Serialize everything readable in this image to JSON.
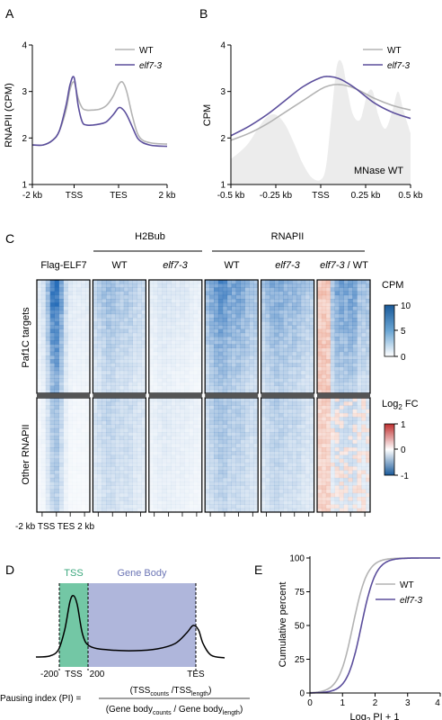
{
  "panels": {
    "A": {
      "label": "A",
      "chart_data": {
        "type": "line",
        "ylabel": "RNAPII (CPM)",
        "xlabel": "",
        "x_tick_labels": [
          "-2 kb",
          "TSS",
          "TES",
          "2 kb"
        ],
        "y_ticks": [
          1,
          2,
          3,
          4
        ],
        "ylim": [
          1,
          4
        ],
        "legend_position": "top-right",
        "series": [
          {
            "name": "WT",
            "color": "#b3b3b3",
            "x": [
              0,
              0.08,
              0.15,
              0.2,
              0.25,
              0.28,
              0.31,
              0.34,
              0.37,
              0.4,
              0.45,
              0.5,
              0.55,
              0.6,
              0.64,
              0.67,
              0.7,
              0.74,
              0.78,
              0.82,
              0.87,
              0.92,
              1.0
            ],
            "y": [
              1.85,
              1.85,
              1.95,
              2.15,
              2.6,
              3.05,
              3.2,
              2.85,
              2.65,
              2.6,
              2.6,
              2.62,
              2.7,
              2.9,
              3.15,
              3.2,
              3.0,
              2.5,
              2.1,
              1.95,
              1.9,
              1.88,
              1.87
            ]
          },
          {
            "name": "elf7-3",
            "color": "#5b4e9c",
            "x": [
              0,
              0.08,
              0.15,
              0.2,
              0.25,
              0.28,
              0.31,
              0.34,
              0.37,
              0.4,
              0.45,
              0.5,
              0.55,
              0.6,
              0.64,
              0.67,
              0.7,
              0.74,
              0.78,
              0.82,
              0.87,
              0.92,
              1.0
            ],
            "y": [
              1.85,
              1.85,
              1.95,
              2.15,
              2.7,
              3.15,
              3.3,
              2.7,
              2.35,
              2.28,
              2.28,
              2.3,
              2.35,
              2.5,
              2.65,
              2.62,
              2.5,
              2.25,
              2.0,
              1.9,
              1.85,
              1.83,
              1.82
            ]
          }
        ]
      }
    },
    "B": {
      "label": "B",
      "chart_data": {
        "type": "line",
        "ylabel": "CPM",
        "xlabel": "",
        "x": [
          -0.5,
          -0.25,
          0,
          0.25,
          0.5
        ],
        "x_tick_labels": [
          "-0.5 kb",
          "-0.25 kb",
          "TSS",
          "0.25 kb",
          "0.5 kb"
        ],
        "y_ticks": [
          1,
          2,
          3,
          4
        ],
        "ylim": [
          1,
          4
        ],
        "xlim": [
          -0.5,
          0.5
        ],
        "legend_position": "top-right",
        "annotation": "MNase WT",
        "series": [
          {
            "name": "WT",
            "color": "#b3b3b3",
            "x": [
              -0.5,
              -0.4,
              -0.3,
              -0.2,
              -0.1,
              0,
              0.05,
              0.1,
              0.15,
              0.2,
              0.3,
              0.4,
              0.5
            ],
            "y": [
              1.95,
              2.1,
              2.3,
              2.55,
              2.8,
              3.05,
              3.13,
              3.15,
              3.12,
              3.05,
              2.85,
              2.7,
              2.6
            ]
          },
          {
            "name": "elf7-3",
            "color": "#5b4e9c",
            "x": [
              -0.5,
              -0.4,
              -0.3,
              -0.2,
              -0.1,
              0,
              0.05,
              0.1,
              0.15,
              0.2,
              0.3,
              0.4,
              0.5
            ],
            "y": [
              2.05,
              2.25,
              2.5,
              2.8,
              3.1,
              3.3,
              3.32,
              3.28,
              3.18,
              3.05,
              2.75,
              2.55,
              2.42
            ]
          },
          {
            "name": "MNase WT",
            "color": "#ececec",
            "fill": true,
            "x": [
              -0.5,
              -0.45,
              -0.4,
              -0.35,
              -0.3,
              -0.25,
              -0.2,
              -0.15,
              -0.1,
              -0.05,
              0,
              0.03,
              0.06,
              0.09,
              0.12,
              0.15,
              0.18,
              0.22,
              0.26,
              0.29,
              0.32,
              0.36,
              0.4,
              0.43,
              0.46,
              0.5
            ],
            "y": [
              1.55,
              1.7,
              1.9,
              2.2,
              2.45,
              2.5,
              2.3,
              1.9,
              1.45,
              1.15,
              1.1,
              1.4,
              2.5,
              3.55,
              3.6,
              3.0,
              2.5,
              2.4,
              2.95,
              3.0,
              2.5,
              2.2,
              2.6,
              3.0,
              2.6,
              2.1
            ]
          }
        ]
      }
    },
    "C": {
      "label": "C",
      "group_labels": [
        "H2Bub",
        "RNAPII"
      ],
      "columns": [
        {
          "label": "Flag-ELF7",
          "italic": false,
          "kind": "blue",
          "row1": 0.85,
          "row2": 0.35,
          "gap": false
        },
        {
          "label": "WT",
          "italic": false,
          "kind": "blue",
          "row1": 0.45,
          "row2": 0.3,
          "gap": true
        },
        {
          "label": "elf7-3",
          "italic": true,
          "kind": "blue",
          "row1": 0.18,
          "row2": 0.14,
          "gap": true
        },
        {
          "label": "WT",
          "italic": false,
          "kind": "blue",
          "row1": 0.75,
          "row2": 0.4,
          "gap": true
        },
        {
          "label": "elf7-3",
          "italic": true,
          "kind": "blue",
          "row1": 0.6,
          "row2": 0.33,
          "gap": true
        },
        {
          "label_main": "elf7-3",
          "label_rest": " / WT",
          "kind": "div",
          "row1": 0.5,
          "row2": 0.2,
          "gap": true
        }
      ],
      "row_labels": [
        "Paf1C targets",
        "Other RNAPII"
      ],
      "x_axis_label": "-2 kb TSS TES 2 kb",
      "colorbar_cpm": {
        "title": "CPM",
        "ticks": [
          "10",
          "5",
          "0"
        ],
        "colors": [
          "#1a5a9a",
          "#ffffff"
        ]
      },
      "colorbar_fc": {
        "title_main": "Log",
        "title_sub": "2",
        "title_rest": " FC",
        "ticks": [
          "1",
          "0",
          "-1"
        ],
        "colors": [
          "#c03030",
          "#ffffff",
          "#1a5a9a"
        ]
      }
    },
    "D": {
      "label": "D",
      "region_tss": "TSS",
      "region_body": "Gene Body",
      "tss_color": "#5bbd95",
      "body_color": "#9ba4d2",
      "tick_labels": [
        "-200",
        "TSS",
        "200",
        "TES"
      ],
      "formula": {
        "lhs": "Pausing index (PI) =",
        "num_a": "(TSS",
        "num_a_sub": "counts",
        "num_b": " /TSS",
        "num_b_sub": "length",
        "num_c": ")",
        "den_a": "(Gene body",
        "den_a_sub": "counts",
        "den_b": " / Gene body",
        "den_b_sub": "length",
        "den_c": ")"
      }
    },
    "E": {
      "label": "E",
      "chart_data": {
        "type": "line",
        "ylabel": "Cumulative percent",
        "xlabel_main": "Log",
        "xlabel_sub": "2",
        "xlabel_rest": " PI + 1",
        "x_ticks": [
          0,
          1,
          2,
          3,
          4
        ],
        "y_ticks": [
          0,
          25,
          50,
          75,
          100
        ],
        "xlim": [
          0,
          4
        ],
        "ylim": [
          0,
          100
        ],
        "legend_position": "right",
        "series": [
          {
            "name": "WT",
            "color": "#b3b3b3",
            "mu": 1.32,
            "s": 0.22
          },
          {
            "name": "elf7-3",
            "color": "#5b4e9c",
            "mu": 1.58,
            "s": 0.22
          }
        ]
      }
    }
  }
}
